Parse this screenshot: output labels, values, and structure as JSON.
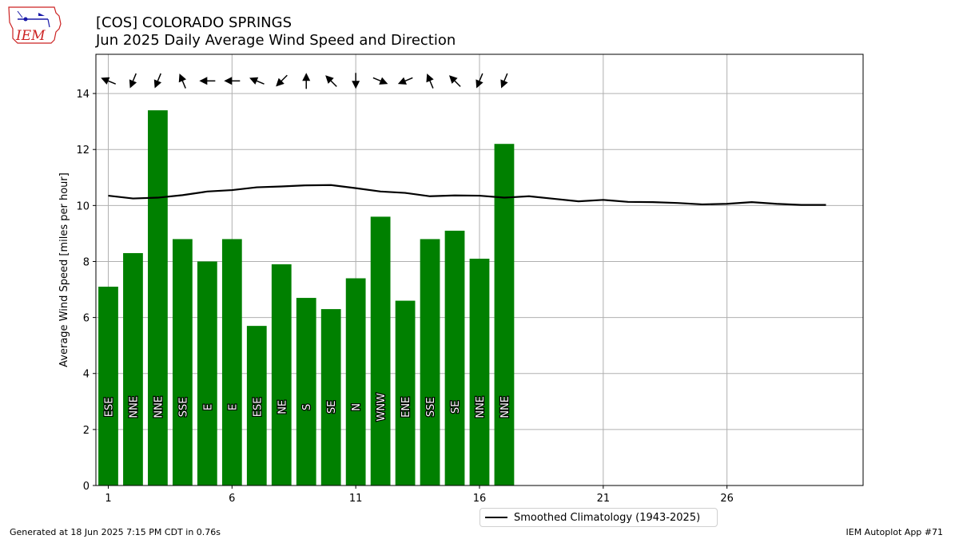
{
  "header": {
    "title_line1": "[COS] COLORADO SPRINGS",
    "title_line2": "Jun 2025 Daily Average Wind Speed and Direction"
  },
  "logo": {
    "text": "IEM"
  },
  "footer": {
    "generated": "Generated at 18 Jun 2025 7:15 PM CDT in 0.76s",
    "app": "IEM Autoplot App #71"
  },
  "legend": {
    "label": "Smoothed Climatology (1943-2025)"
  },
  "colors": {
    "bar": "#008000",
    "line": "#000000",
    "grid": "#b0b0b0",
    "logo_red": "#cc2222",
    "logo_blue": "#1a1aa8"
  },
  "chart_data": {
    "type": "bar",
    "ylabel": "Average Wind Speed [miles per hour]",
    "xlabel": "",
    "ylim": [
      0,
      15.4
    ],
    "xlim": [
      0.5,
      31.5
    ],
    "xticks": [
      1,
      6,
      11,
      16,
      21,
      26
    ],
    "yticks": [
      0,
      2,
      4,
      6,
      8,
      10,
      12,
      14
    ],
    "grid": true,
    "legend_position": "bottom-center, below axes",
    "days": [
      1,
      2,
      3,
      4,
      5,
      6,
      7,
      8,
      9,
      10,
      11,
      12,
      13,
      14,
      15,
      16,
      17
    ],
    "values": [
      7.1,
      8.3,
      13.4,
      8.8,
      8.0,
      8.8,
      5.7,
      7.9,
      6.7,
      6.3,
      7.4,
      9.6,
      6.6,
      8.8,
      9.1,
      8.1,
      12.2
    ],
    "directions": [
      "ESE",
      "NNE",
      "NNE",
      "SSE",
      "E",
      "E",
      "ESE",
      "NE",
      "S",
      "SE",
      "N",
      "WNW",
      "ENE",
      "SSE",
      "SE",
      "NNE",
      "NNE"
    ],
    "arrow_y": 14.45,
    "climatology": {
      "name": "Smoothed Climatology (1943-2025)",
      "x": [
        1,
        2,
        3,
        4,
        5,
        6,
        7,
        8,
        9,
        10,
        11,
        12,
        13,
        14,
        15,
        16,
        17,
        18,
        19,
        20,
        21,
        22,
        23,
        24,
        25,
        26,
        27,
        28,
        29,
        30
      ],
      "y": [
        10.35,
        10.25,
        10.28,
        10.37,
        10.5,
        10.55,
        10.65,
        10.68,
        10.72,
        10.73,
        10.62,
        10.5,
        10.45,
        10.33,
        10.36,
        10.35,
        10.28,
        10.33,
        10.24,
        10.15,
        10.2,
        10.13,
        10.12,
        10.09,
        10.04,
        10.06,
        10.12,
        10.06,
        10.02,
        10.02
      ]
    }
  }
}
